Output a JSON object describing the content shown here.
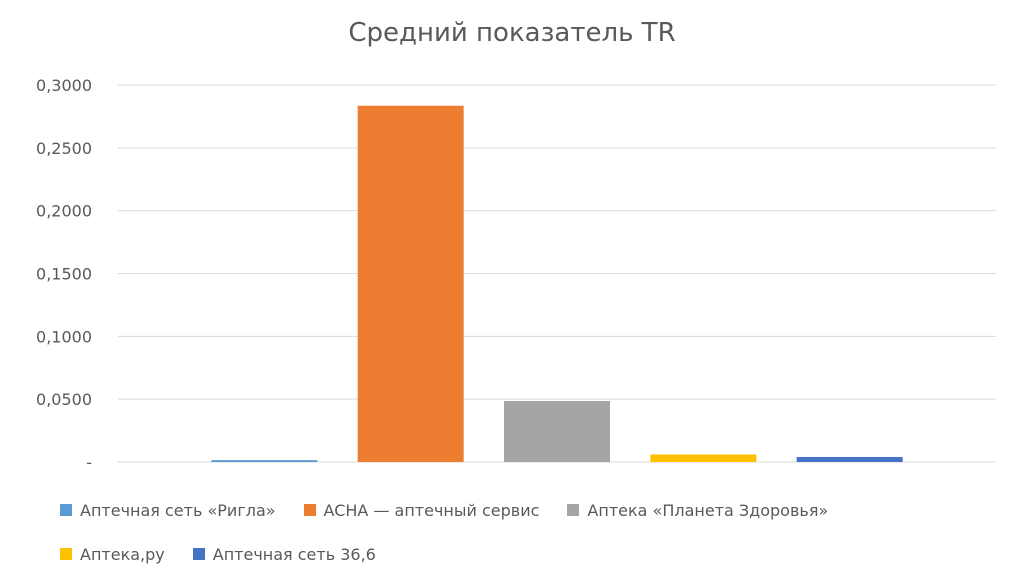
{
  "chart_data": {
    "type": "bar",
    "title": "Средний показатель TR",
    "xlabel": "",
    "ylabel": "",
    "ylim": [
      0,
      0.3
    ],
    "yticks": [
      {
        "value": 0,
        "label": "-"
      },
      {
        "value": 0.05,
        "label": "0,0500"
      },
      {
        "value": 0.1,
        "label": "0,1000"
      },
      {
        "value": 0.15,
        "label": "0,1500"
      },
      {
        "value": 0.2,
        "label": "0,2000"
      },
      {
        "value": 0.25,
        "label": "0,2500"
      },
      {
        "value": 0.3,
        "label": "0,3000"
      }
    ],
    "grid": true,
    "legend_position": "bottom",
    "series": [
      {
        "name": "Аптечная сеть «Ригла»",
        "value": 0.0015,
        "color": "#5B9BD5"
      },
      {
        "name": "ACHA — аптечный сервис",
        "value": 0.2835,
        "color": "#ED7D31"
      },
      {
        "name": "Аптека «Планета Здоровья»",
        "value": 0.0485,
        "color": "#A5A5A5"
      },
      {
        "name": "Аптека,ру",
        "value": 0.006,
        "color": "#FFC000"
      },
      {
        "name": "Аптечная сеть 36,6",
        "value": 0.004,
        "color": "#4472C4"
      }
    ]
  }
}
